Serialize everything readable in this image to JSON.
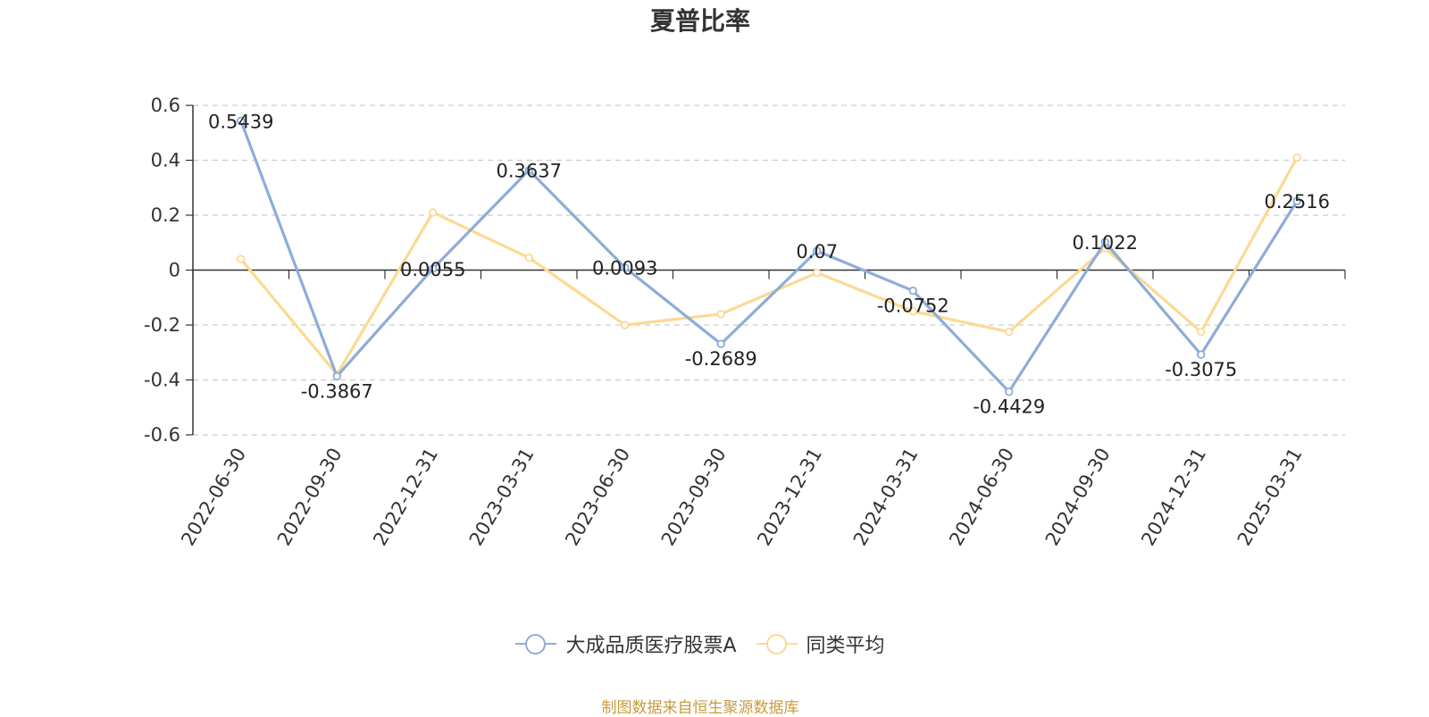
{
  "chart_data": {
    "type": "line",
    "title": "夏普比率",
    "categories": [
      "2022-06-30",
      "2022-09-30",
      "2022-12-31",
      "2023-03-31",
      "2023-06-30",
      "2023-09-30",
      "2023-12-31",
      "2024-03-31",
      "2024-06-30",
      "2024-09-30",
      "2024-12-31",
      "2025-03-31"
    ],
    "ylim": [
      -0.6,
      0.6
    ],
    "yticks": [
      "0.6",
      "0.4",
      "0.2",
      "0",
      "-0.2",
      "-0.4",
      "-0.6"
    ],
    "grid": true,
    "legend_position": "bottom",
    "series": [
      {
        "name": "大成品质医疗股票A",
        "color": "#8eacd8",
        "values": [
          0.5439,
          -0.3867,
          0.0055,
          0.3637,
          0.0093,
          -0.2689,
          0.07,
          -0.0752,
          -0.4429,
          0.1022,
          -0.3075,
          0.2516
        ],
        "labels": [
          "0.5439",
          "-0.3867",
          "0.0055",
          "0.3637",
          "0.0093",
          "-0.2689",
          "0.07",
          "-0.0752",
          "-0.4429",
          "0.1022",
          "-0.3075",
          "0.2516"
        ]
      },
      {
        "name": "同类平均",
        "color": "#fcd994",
        "values": [
          0.04,
          -0.38,
          0.21,
          0.045,
          -0.2,
          -0.16,
          -0.01,
          -0.15,
          -0.225,
          0.08,
          -0.225,
          0.41
        ]
      }
    ]
  },
  "source_text": "制图数据来自恒生聚源数据库"
}
